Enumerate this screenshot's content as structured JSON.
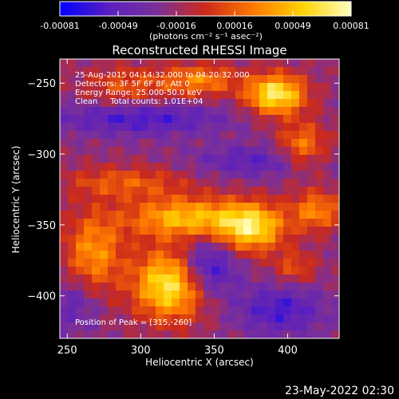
{
  "colorbar": {
    "tick_labels": [
      "-0.00081",
      "-0.00049",
      "-0.00016",
      "0.00016",
      "0.00049",
      "0.00081"
    ],
    "units_label": "(photons cm⁻² s⁻¹ asec⁻²)",
    "min": -0.00081,
    "max": 0.00081,
    "colors": [
      "#0000ff",
      "#5a1fbf",
      "#7a2f9a",
      "#cc2a1a",
      "#ff7a00",
      "#ffd200",
      "#ffffc0"
    ]
  },
  "chart_data": {
    "type": "heatmap",
    "title": "Reconstructed RHESSI Image",
    "xlabel": "Heliocentric X (arcsec)",
    "ylabel": "Heliocentric Y (arcsec)",
    "xlim": [
      245,
      435
    ],
    "ylim": [
      -430,
      -233
    ],
    "xticks": [
      250,
      300,
      350,
      400
    ],
    "yticks": [
      -250,
      -300,
      -350,
      -400
    ],
    "xtick_labels": [
      "250",
      "300",
      "350",
      "400"
    ],
    "ytick_labels": [
      "−250",
      "−300",
      "−350",
      "−400"
    ],
    "grid": false,
    "annotations": {
      "line1": "25-Aug-2015 04:14:32.000 to 04:20:32.000",
      "line2": "Detectors: 3F 5F 6F 8F, Att 0",
      "line3": "Energy Range: 25.000-50.0 keV",
      "line4": "Clean     Total counts: 1.01E+04",
      "peak": "Position of Peak = [315,-260]"
    },
    "intensity_blobs": [
      {
        "x": 392,
        "y": -258,
        "amp": 1.0,
        "sx": 14,
        "sy": 10
      },
      {
        "x": 340,
        "y": -248,
        "amp": 0.55,
        "sx": 18,
        "sy": 8
      },
      {
        "x": 290,
        "y": -252,
        "amp": 0.35,
        "sx": 20,
        "sy": 10
      },
      {
        "x": 410,
        "y": -295,
        "amp": 0.55,
        "sx": 12,
        "sy": 12
      },
      {
        "x": 330,
        "y": -345,
        "amp": 0.75,
        "sx": 28,
        "sy": 10
      },
      {
        "x": 375,
        "y": -352,
        "amp": 0.9,
        "sx": 16,
        "sy": 12
      },
      {
        "x": 420,
        "y": -340,
        "amp": 0.55,
        "sx": 12,
        "sy": 10
      },
      {
        "x": 290,
        "y": -320,
        "amp": 0.4,
        "sx": 30,
        "sy": 8
      },
      {
        "x": 320,
        "y": -392,
        "amp": 1.0,
        "sx": 17,
        "sy": 17
      },
      {
        "x": 268,
        "y": -370,
        "amp": 0.6,
        "sx": 14,
        "sy": 20
      },
      {
        "x": 405,
        "y": -380,
        "amp": 0.35,
        "sx": 10,
        "sy": 8
      },
      {
        "x": 300,
        "y": -275,
        "amp": -0.45,
        "sx": 40,
        "sy": 8
      },
      {
        "x": 380,
        "y": -305,
        "amp": -0.35,
        "sx": 30,
        "sy": 8
      },
      {
        "x": 345,
        "y": -380,
        "amp": -0.6,
        "sx": 14,
        "sy": 14
      },
      {
        "x": 395,
        "y": -410,
        "amp": -0.45,
        "sx": 20,
        "sy": 12
      },
      {
        "x": 255,
        "y": -405,
        "amp": -0.3,
        "sx": 12,
        "sy": 14
      }
    ]
  },
  "footer": {
    "timestamp": "23-May-2022 02:30"
  }
}
